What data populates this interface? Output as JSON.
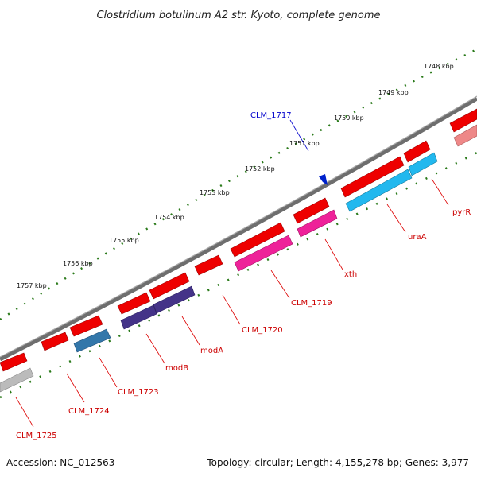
{
  "title": "Clostridium botulinum A2 str. Kyoto, complete genome",
  "footer": {
    "accession": "Accession: NC_012563",
    "summary": "Topology: circular; Length: 4,155,278 bp; Genes: 3,977"
  },
  "kbp_ticks": [
    "1748 kbp",
    "1749 kbp",
    "1750 kbp",
    "1751 kbp",
    "1752 kbp",
    "1753 kbp",
    "1754 kbp",
    "1755 kbp",
    "1756 kbp",
    "1757 kbp"
  ],
  "genes": [
    {
      "label": "pyrR",
      "color": "#dd0000"
    },
    {
      "label": "uraA",
      "color": "#dd0000"
    },
    {
      "label": "xth",
      "color": "#dd0000"
    },
    {
      "label": "CLM_1719",
      "color": "#dd0000"
    },
    {
      "label": "CLM_1720",
      "color": "#dd0000"
    },
    {
      "label": "modA",
      "color": "#dd0000"
    },
    {
      "label": "modB",
      "color": "#dd0000"
    },
    {
      "label": "CLM_1723",
      "color": "#dd0000"
    },
    {
      "label": "CLM_1724",
      "color": "#dd0000"
    },
    {
      "label": "CLM_1725",
      "color": "#dd0000"
    },
    {
      "label": "CLM_1717",
      "color": "#0000cc"
    }
  ],
  "colors": {
    "backbone": "#777777",
    "forward_gene": "#ee0000",
    "cog_cyan": "#22b8ee",
    "cog_pink": "#ee2299",
    "cog_purple": "#443388",
    "cog_steelblue": "#3377aa",
    "cog_gray": "#bbbbbb",
    "cog_lightred": "#ee8888",
    "tick_green": "#2a7a1a"
  }
}
